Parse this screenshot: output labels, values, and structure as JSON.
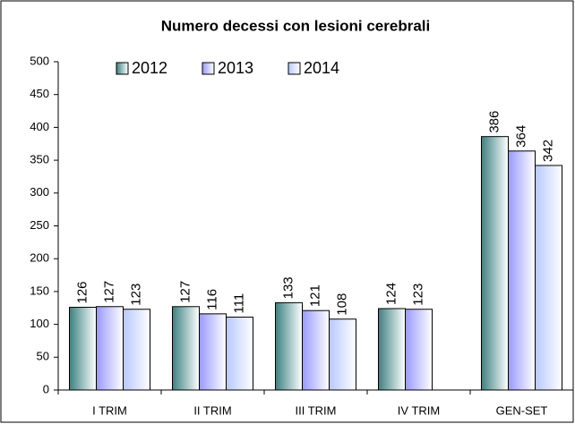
{
  "chart_data": {
    "type": "bar",
    "title": "Numero decessi con lesioni cerebrali",
    "categories": [
      "I TRIM",
      "II TRIM",
      "III TRIM",
      "IV TRIM",
      "GEN-SET"
    ],
    "series": [
      {
        "name": "2012",
        "color": "#3d8080",
        "values": [
          126,
          127,
          133,
          124,
          386
        ]
      },
      {
        "name": "2013",
        "color": "#9999ff",
        "values": [
          127,
          116,
          121,
          123,
          364
        ]
      },
      {
        "name": "2014",
        "color": "#b8c8ff",
        "values": [
          123,
          111,
          108,
          null,
          342
        ]
      }
    ],
    "ylim": [
      0,
      500
    ],
    "yticks": [
      0,
      50,
      100,
      150,
      200,
      250,
      300,
      350,
      400,
      450,
      500
    ],
    "grid": false,
    "legend": "top"
  }
}
